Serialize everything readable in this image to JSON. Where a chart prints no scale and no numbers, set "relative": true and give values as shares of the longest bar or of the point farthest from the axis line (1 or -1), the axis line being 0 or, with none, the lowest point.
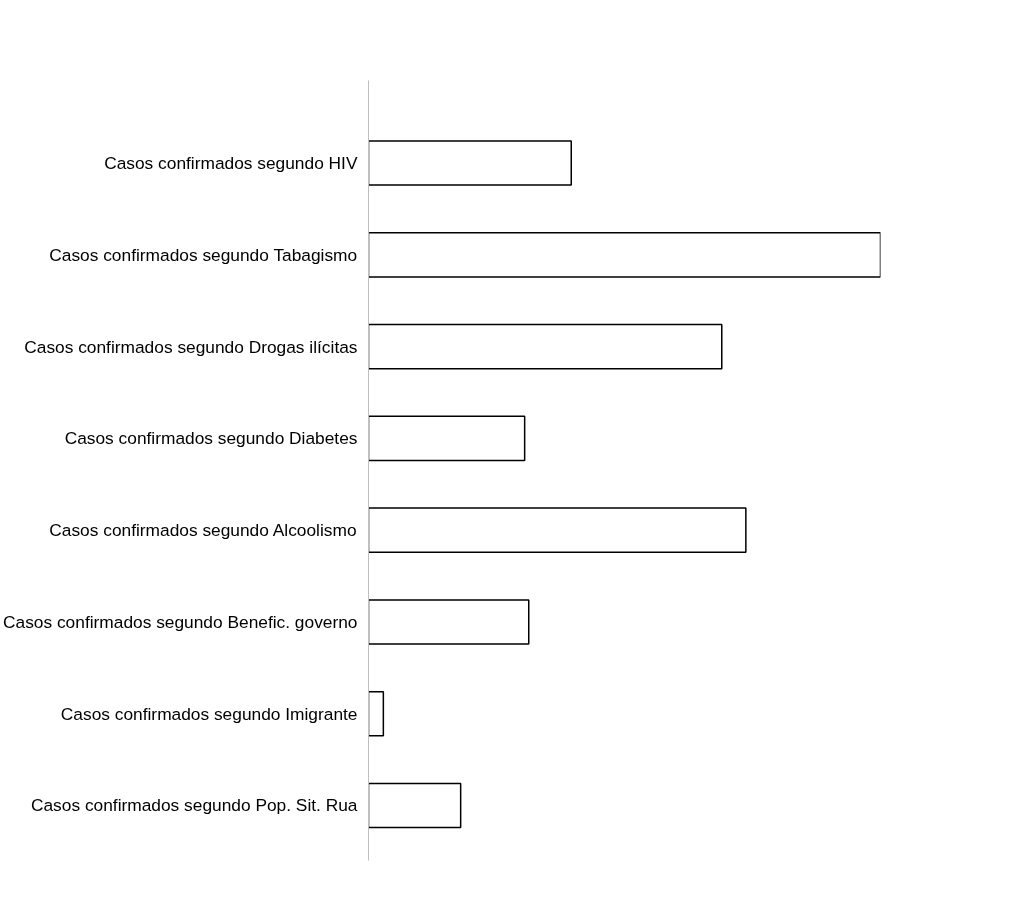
{
  "chart_data": {
    "type": "bar",
    "orientation": "horizontal",
    "relative": true,
    "categories": [
      "Casos confirmados segundo HIV",
      "Casos confirmados segundo Tabagismo",
      "Casos confirmados segundo Drogas ilícitas",
      "Casos confirmados segundo Diabetes",
      "Casos confirmados segundo Alcoolismo",
      "Casos confirmados segundo Benefic. governo",
      "Casos confirmados segundo Imigrante",
      "Casos confirmados segundo Pop. Sit. Rua"
    ],
    "values": [
      0.396,
      1,
      0.69,
      0.305,
      0.737,
      0.313,
      0.029,
      0.18
    ],
    "color": "#ffffff",
    "grid": false
  }
}
